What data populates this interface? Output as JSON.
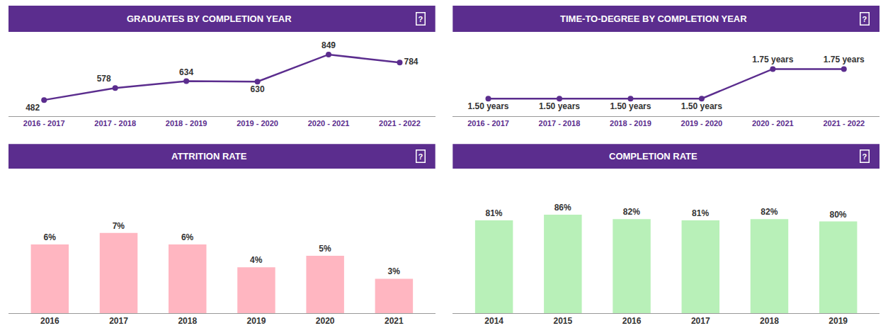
{
  "chart_data": [
    {
      "type": "line",
      "title": "GRADUATES BY COMPLETION YEAR",
      "annotations": [
        "?"
      ],
      "categories": [
        "2016 - 2017",
        "2017 - 2018",
        "2018 - 2019",
        "2019 - 2020",
        "2020 - 2021",
        "2021 - 2022"
      ],
      "values": [
        482,
        578,
        634,
        630,
        849,
        784
      ],
      "color": "#5B2D8E",
      "marker": "circle",
      "data_labels": true,
      "ylim": [
        350,
        970
      ],
      "tick_labels": "x",
      "grid": false
    },
    {
      "type": "line",
      "title": "TIME-TO-DEGREE BY COMPLETION YEAR",
      "annotations": [
        "?"
      ],
      "categories": [
        "2016 - 2017",
        "2017 - 2018",
        "2018 - 2019",
        "2019 - 2020",
        "2020 - 2021",
        "2021 - 2022"
      ],
      "values": [
        1.5,
        1.5,
        1.5,
        1.5,
        1.75,
        1.75
      ],
      "value_labels": [
        "1.50 years",
        "1.50 years",
        "1.50 years",
        "1.50 years",
        "1.75 years",
        "1.75 years"
      ],
      "color": "#5B2D8E",
      "marker": "circle",
      "data_labels": true,
      "ylim": [
        1.35,
        2.0
      ],
      "tick_labels": "x",
      "grid": false
    },
    {
      "type": "bar",
      "title": "ATTRITION RATE",
      "annotations": [
        "?"
      ],
      "categories": [
        "2016",
        "2017",
        "2018",
        "2019",
        "2020",
        "2021"
      ],
      "values": [
        6,
        7,
        6,
        4,
        5,
        3
      ],
      "value_labels": [
        "6%",
        "7%",
        "6%",
        "4%",
        "5%",
        "3%"
      ],
      "color": "#FFB6C1",
      "data_labels": true,
      "ylim": [
        0,
        11
      ],
      "tick_labels": "x",
      "grid": false
    },
    {
      "type": "bar",
      "title": "COMPLETION RATE",
      "annotations": [
        "?"
      ],
      "categories": [
        "2014",
        "2015",
        "2016",
        "2017",
        "2018",
        "2019"
      ],
      "values": [
        81,
        86,
        82,
        81,
        82,
        80
      ],
      "value_labels": [
        "81%",
        "86%",
        "82%",
        "81%",
        "82%",
        "80%"
      ],
      "color": "#b8f0b8",
      "data_labels": true,
      "ylim": [
        0,
        110
      ],
      "tick_labels": "x",
      "grid": false
    }
  ]
}
